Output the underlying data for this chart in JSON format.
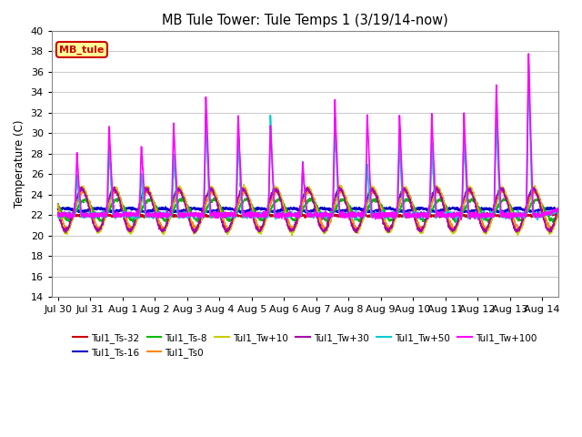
{
  "title": "MB Tule Tower: Tule Temps 1 (3/19/14-now)",
  "ylabel": "Temperature (C)",
  "ylim": [
    14,
    40
  ],
  "yticks": [
    14,
    16,
    18,
    20,
    22,
    24,
    26,
    28,
    30,
    32,
    34,
    36,
    38,
    40
  ],
  "xtick_labels": [
    "Jul 30",
    "Jul 31",
    "Aug 1",
    "Aug 2",
    "Aug 3",
    "Aug 4",
    "Aug 5",
    "Aug 6",
    "Aug 7",
    "Aug 8",
    "Aug 9",
    "Aug 10",
    "Aug 11",
    "Aug 12",
    "Aug 13",
    "Aug 14"
  ],
  "xtick_positions": [
    0,
    1,
    2,
    3,
    4,
    5,
    6,
    7,
    8,
    9,
    10,
    11,
    12,
    13,
    14,
    15
  ],
  "series": [
    {
      "label": "Tul1_Ts-32",
      "color": "#cc0000"
    },
    {
      "label": "Tul1_Ts-16",
      "color": "#0000cc"
    },
    {
      "label": "Tul1_Ts-8",
      "color": "#00bb00"
    },
    {
      "label": "Tul1_Ts0",
      "color": "#ff8800"
    },
    {
      "label": "Tul1_Tw+10",
      "color": "#cccc00"
    },
    {
      "label": "Tul1_Tw+30",
      "color": "#aa00aa"
    },
    {
      "label": "Tul1_Tw+50",
      "color": "#00cccc"
    },
    {
      "label": "Tul1_Tw+100",
      "color": "#ff00ff"
    }
  ],
  "legend_label": "MB_tule",
  "legend_box_color": "#ffff99",
  "legend_box_edge": "#cc0000",
  "background_color": "#ffffff",
  "grid_color": "#cccccc",
  "legend_ncol1": 6,
  "legend_ncol2": 2
}
